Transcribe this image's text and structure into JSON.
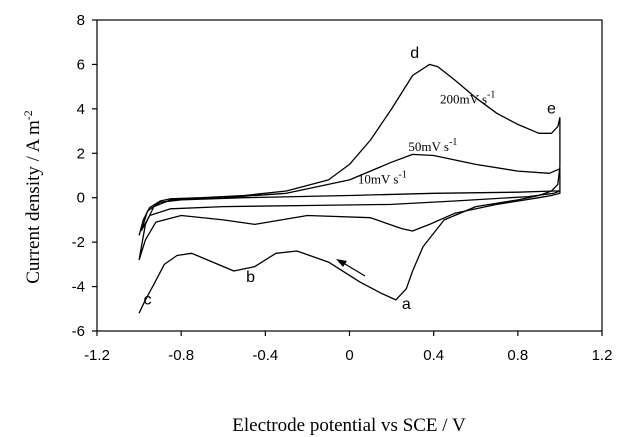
{
  "chart_data": {
    "type": "line",
    "xlabel": "Electrode potential vs  SCE / V",
    "ylabel_main": "Current density / A m",
    "ylabel_sup": "-2",
    "xlim": [
      -1.2,
      1.2
    ],
    "ylim": [
      -6,
      8
    ],
    "x_ticks": [
      -1.2,
      -0.8,
      -0.4,
      0,
      0.4,
      0.8,
      1.2
    ],
    "x_tick_labels": [
      "-1.2",
      "-0.8",
      "-0.4",
      "0",
      "0.4",
      "0.8",
      "1.2"
    ],
    "y_ticks": [
      -6,
      -4,
      -2,
      0,
      2,
      4,
      6,
      8
    ],
    "y_tick_labels": [
      "-6",
      "-4",
      "-2",
      "0",
      "2",
      "4",
      "6",
      "8"
    ],
    "grid": false,
    "series": [
      {
        "label_main": "200mV s",
        "label_sup": "-1",
        "x": [
          -1.0,
          -0.98,
          -0.95,
          -0.9,
          -0.85,
          -0.7,
          -0.5,
          -0.3,
          -0.1,
          0.0,
          0.1,
          0.2,
          0.3,
          0.38,
          0.42,
          0.5,
          0.6,
          0.7,
          0.8,
          0.9,
          0.96,
          0.99,
          1.0,
          1.0,
          0.99,
          0.96,
          0.9,
          0.8,
          0.6,
          0.45,
          0.35,
          0.3,
          0.27,
          0.22,
          0.15,
          0.05,
          -0.1,
          -0.25,
          -0.35,
          -0.45,
          -0.55,
          -0.65,
          -0.75,
          -0.82,
          -0.88,
          -0.93,
          -0.97,
          -1.0
        ],
        "y": [
          -1.7,
          -1.0,
          -0.45,
          -0.15,
          -0.05,
          0.0,
          0.1,
          0.3,
          0.8,
          1.5,
          2.6,
          4.0,
          5.5,
          6.0,
          5.9,
          5.3,
          4.5,
          3.8,
          3.3,
          2.9,
          2.9,
          3.2,
          3.6,
          1.4,
          0.6,
          0.3,
          0.1,
          -0.1,
          -0.4,
          -1.0,
          -2.2,
          -3.3,
          -4.1,
          -4.6,
          -4.3,
          -3.8,
          -2.9,
          -2.4,
          -2.5,
          -3.1,
          -3.3,
          -2.9,
          -2.5,
          -2.6,
          -3.0,
          -3.9,
          -4.6,
          -5.2
        ]
      },
      {
        "label_main": "50mV s",
        "label_sup": "-1",
        "x": [
          -1.0,
          -0.97,
          -0.93,
          -0.85,
          -0.6,
          -0.3,
          0.0,
          0.2,
          0.3,
          0.4,
          0.6,
          0.8,
          0.95,
          1.0,
          1.0,
          0.96,
          0.9,
          0.7,
          0.5,
          0.38,
          0.3,
          0.25,
          0.1,
          -0.2,
          -0.45,
          -0.6,
          -0.8,
          -0.92,
          -0.97,
          -1.0
        ],
        "y": [
          -2.8,
          -1.2,
          -0.4,
          -0.1,
          0.0,
          0.2,
          0.8,
          1.6,
          1.95,
          1.9,
          1.5,
          1.2,
          1.1,
          1.3,
          0.2,
          0.1,
          0.0,
          -0.3,
          -0.7,
          -1.2,
          -1.5,
          -1.4,
          -0.9,
          -0.8,
          -1.2,
          -1.0,
          -0.8,
          -1.1,
          -1.9,
          -2.8
        ]
      },
      {
        "label_main": "10mV s",
        "label_sup": "-1",
        "x": [
          -0.99,
          -0.96,
          -0.9,
          -0.8,
          -0.5,
          0.0,
          0.4,
          0.8,
          0.97,
          1.0,
          0.97,
          0.85,
          0.5,
          0.2,
          -0.2,
          -0.6,
          -0.85,
          -0.95,
          -0.99
        ],
        "y": [
          -1.5,
          -0.6,
          -0.2,
          -0.1,
          0.0,
          0.1,
          0.2,
          0.25,
          0.3,
          0.3,
          0.2,
          0.05,
          -0.15,
          -0.3,
          -0.35,
          -0.4,
          -0.5,
          -0.8,
          -1.5
        ]
      }
    ],
    "point_labels": [
      {
        "text": "a",
        "x": 0.27,
        "y": -5.0
      },
      {
        "text": "b",
        "x": -0.47,
        "y": -3.8
      },
      {
        "text": "c",
        "x": -0.96,
        "y": -4.8
      },
      {
        "text": "d",
        "x": 0.31,
        "y": 6.3
      },
      {
        "text": "e",
        "x": 0.96,
        "y": 3.8
      }
    ]
  }
}
